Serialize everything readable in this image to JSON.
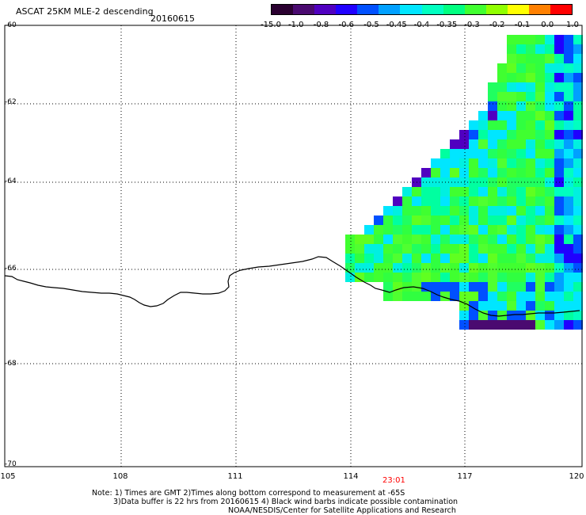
{
  "header": {
    "title": "ASCAT 25KM MLE-2 descending",
    "date": "20160615"
  },
  "colorbar": {
    "labels": [
      "-15.0",
      "-1.0",
      "-0.8",
      "-0.6",
      "-0.5",
      "-0.45",
      "-0.4",
      "-0.35",
      "-0.3",
      "-0.2",
      "-0.1",
      "0.0",
      "1.0"
    ],
    "colors": [
      "#2a0030",
      "#4a0a70",
      "#5000c0",
      "#2000ff",
      "#0050ff",
      "#00a0ff",
      "#00e6ff",
      "#00ffc0",
      "#00ff80",
      "#40ff30",
      "#90ff00",
      "#ffff00",
      "#ff8000",
      "#ff0000"
    ]
  },
  "axes": {
    "lat_labels": [
      "-60",
      "-62",
      "-64",
      "-66",
      "-68",
      "-70"
    ],
    "lon_labels": [
      "105",
      "108",
      "111",
      "114",
      "117",
      "120"
    ]
  },
  "time_marker": "23:01",
  "footer": {
    "line1": "Note: 1) Times are GMT 2)Times along bottom correspond to measurement at -65S",
    "line2": "3)Data buffer is 22 hrs from 20160615 4) Black wind barbs indicate possible contamination",
    "line3": "NOAA/NESDIS/Center for Satellite Applications and Research"
  },
  "style": {
    "time_color": "#ff0000",
    "grid_color": "#000000",
    "coast_color": "#000000"
  }
}
